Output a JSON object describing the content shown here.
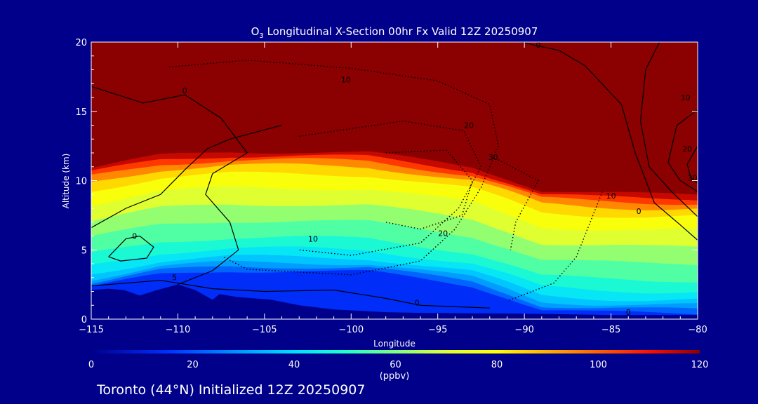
{
  "chart_data": {
    "type": "heatmap",
    "title_main": "O",
    "title_sub": "3",
    "title_rest": " Longitudinal X-Section 00hr  Fx Valid 12Z 20250907",
    "xlabel": "Longitude",
    "ylabel": "Altitude (km)",
    "xlim": [
      -115,
      -80
    ],
    "ylim": [
      0,
      20
    ],
    "x_ticks": [
      "−115",
      "−110",
      "−105",
      "−100",
      "−95",
      "−90",
      "−85",
      "−80"
    ],
    "x_tick_values": [
      -115,
      -110,
      -105,
      -100,
      -95,
      -90,
      -85,
      -80
    ],
    "y_ticks": [
      "0",
      "5",
      "10",
      "15",
      "20"
    ],
    "y_tick_values": [
      0,
      5,
      10,
      15,
      20
    ],
    "colorbar": {
      "label": "(ppbv)",
      "range": [
        0,
        120
      ],
      "ticks": [
        "0",
        "20",
        "40",
        "60",
        "80",
        "100",
        "120"
      ],
      "tick_values": [
        0,
        20,
        40,
        60,
        80,
        100,
        120
      ],
      "stops": [
        {
          "v": 0,
          "c": "#00008b"
        },
        {
          "v": 15,
          "c": "#0030ff"
        },
        {
          "v": 28,
          "c": "#0090ff"
        },
        {
          "v": 40,
          "c": "#00e0ff"
        },
        {
          "v": 50,
          "c": "#20ffc8"
        },
        {
          "v": 60,
          "c": "#80ff80"
        },
        {
          "v": 70,
          "c": "#e0ff30"
        },
        {
          "v": 80,
          "c": "#ffff00"
        },
        {
          "v": 90,
          "c": "#ffb000"
        },
        {
          "v": 100,
          "c": "#ff6000"
        },
        {
          "v": 110,
          "c": "#ff1000"
        },
        {
          "v": 120,
          "c": "#8b0000"
        }
      ]
    },
    "tropopause_km": [
      [
        -115,
        10.9
      ],
      [
        -111,
        11.8
      ],
      [
        -107,
        12.1
      ],
      [
        -103,
        12.1
      ],
      [
        -99,
        12.0
      ],
      [
        -96,
        11.5
      ],
      [
        -93,
        11.0
      ],
      [
        -91,
        10.2
      ],
      [
        -89,
        9.3
      ],
      [
        -86,
        9.1
      ],
      [
        -83,
        9.0
      ],
      [
        -80,
        9.0
      ]
    ],
    "contour_labels": [
      {
        "lon": -109.6,
        "alt": 16.3,
        "text": "0",
        "style": "solid"
      },
      {
        "lon": -100.3,
        "alt": 17.1,
        "text": "10",
        "style": "dotted"
      },
      {
        "lon": -93.2,
        "alt": 13.8,
        "text": "20",
        "style": "dotted"
      },
      {
        "lon": -91.8,
        "alt": 11.5,
        "text": "30",
        "style": "dotted"
      },
      {
        "lon": -102.2,
        "alt": 5.6,
        "text": "10",
        "style": "dotted"
      },
      {
        "lon": -94.7,
        "alt": 6.0,
        "text": "20",
        "style": "dotted"
      },
      {
        "lon": -112.5,
        "alt": 5.8,
        "text": "0",
        "style": "solid"
      },
      {
        "lon": -110.2,
        "alt": 2.8,
        "text": "5",
        "style": "solid"
      },
      {
        "lon": -96.2,
        "alt": 1.0,
        "text": "0",
        "style": "solid"
      },
      {
        "lon": -84.0,
        "alt": 0.3,
        "text": "0",
        "style": "dotted"
      },
      {
        "lon": -85.0,
        "alt": 8.7,
        "text": "10",
        "style": "solid"
      },
      {
        "lon": -83.4,
        "alt": 7.6,
        "text": "0",
        "style": "solid"
      },
      {
        "lon": -89.2,
        "alt": 19.6,
        "text": "0",
        "style": "solid"
      },
      {
        "lon": -80.7,
        "alt": 15.8,
        "text": "10",
        "style": "solid"
      },
      {
        "lon": -80.6,
        "alt": 12.1,
        "text": "20",
        "style": "solid"
      },
      {
        "lon": -80.3,
        "alt": 10.0,
        "text": "30",
        "style": "solid"
      }
    ],
    "grid": false
  },
  "footer": {
    "location_text": "Toronto (44°N) Initialized 12Z 20250907"
  },
  "colors": {
    "background": "#00008b",
    "text": "#ffffff",
    "contour": "#000000",
    "stratosphere": "#8b0000",
    "terrain": "#00008b"
  }
}
